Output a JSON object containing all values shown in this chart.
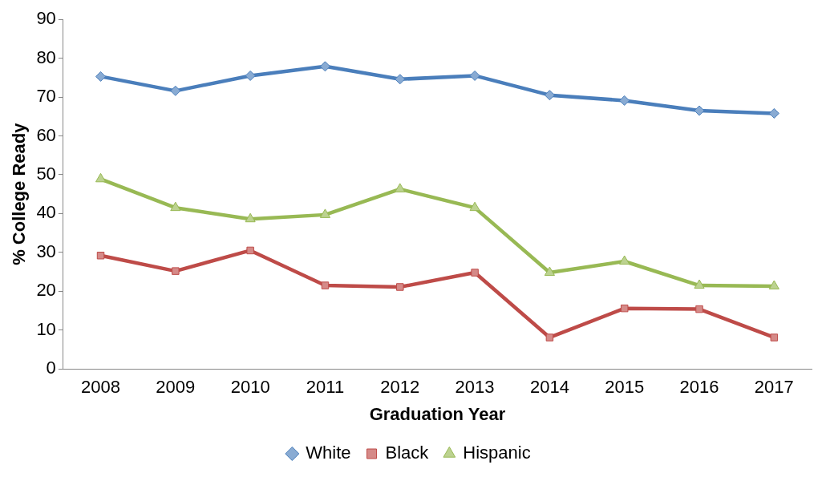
{
  "chart_data": {
    "type": "line",
    "xlabel": "Graduation Year",
    "ylabel": "% College Ready",
    "categories": [
      "2008",
      "2009",
      "2010",
      "2011",
      "2012",
      "2013",
      "2014",
      "2015",
      "2016",
      "2017"
    ],
    "series": [
      {
        "name": "White",
        "color": "#4a7ebb",
        "marker": "diamond",
        "values": [
          75.3,
          71.6,
          75.5,
          77.9,
          74.6,
          75.5,
          70.5,
          69.1,
          66.5,
          65.8
        ]
      },
      {
        "name": "Black",
        "color": "#be4b48",
        "marker": "square",
        "values": [
          29.2,
          25.2,
          30.5,
          21.5,
          21.1,
          24.8,
          8.1,
          15.6,
          15.4,
          8.1
        ]
      },
      {
        "name": "Hispanic",
        "color": "#98b954",
        "marker": "triangle",
        "values": [
          48.9,
          41.5,
          38.6,
          39.7,
          46.3,
          41.5,
          24.8,
          27.7,
          21.5,
          21.3
        ]
      }
    ],
    "ylim": [
      0,
      90
    ],
    "yticks": [
      0,
      10,
      20,
      30,
      40,
      50,
      60,
      70,
      80,
      90
    ],
    "grid": false,
    "legend": "bottom"
  }
}
